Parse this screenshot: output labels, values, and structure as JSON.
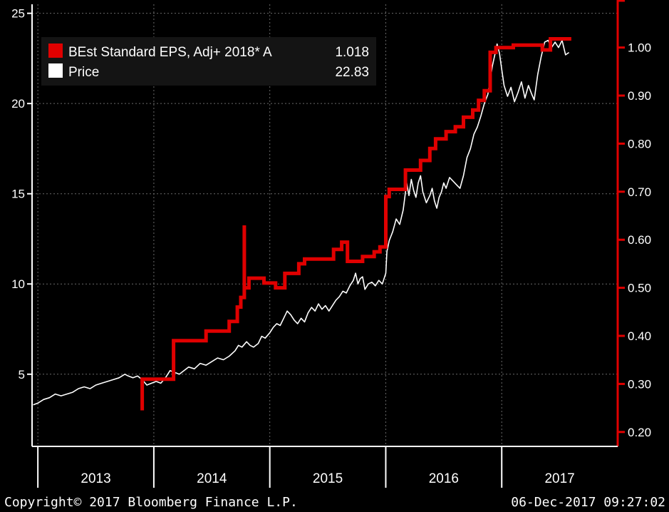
{
  "colors": {
    "background": "#000000",
    "eps": "#e00000",
    "price": "#ffffff",
    "grid": "#6a6a6a",
    "legend_bg": "#141414"
  },
  "chart_data": {
    "type": "line",
    "legend": {
      "placement": "top-left",
      "entries": [
        {
          "key": "eps",
          "label": "BEst Standard EPS, Adj+ 2018* A",
          "last_value": "1.018"
        },
        {
          "key": "price",
          "label": "Price",
          "last_value": "22.83"
        }
      ]
    },
    "left_axis": {
      "ticks": [
        5,
        10,
        15,
        20,
        25
      ],
      "ylim": [
        1.0,
        25.5
      ]
    },
    "right_axis": {
      "ticks": [
        "0.20",
        "0.30",
        "0.40",
        "0.50",
        "0.60",
        "0.70",
        "0.80",
        "0.90",
        "1.00"
      ],
      "ylim": [
        0.17,
        1.09
      ],
      "color": "#e00000"
    },
    "x_axis": {
      "years": [
        "2013",
        "2014",
        "2015",
        "2016",
        "2017"
      ],
      "xlim": [
        2012.95,
        2018.0
      ],
      "grid": true
    },
    "footer": {
      "copyright": "Copyright© 2017 Bloomberg Finance L.P.",
      "timestamp": "06-Dec-2017 09:27:02"
    },
    "series": [
      {
        "name": "BEst Standard EPS, Adj+ 2018* A",
        "axis": "right",
        "step": true,
        "points": [
          [
            2013.9,
            0.245
          ],
          [
            2013.9,
            0.31
          ],
          [
            2014.17,
            0.31
          ],
          [
            2014.17,
            0.39
          ],
          [
            2014.45,
            0.39
          ],
          [
            2014.45,
            0.41
          ],
          [
            2014.65,
            0.41
          ],
          [
            2014.65,
            0.43
          ],
          [
            2014.72,
            0.43
          ],
          [
            2014.72,
            0.46
          ],
          [
            2014.75,
            0.46
          ],
          [
            2014.75,
            0.48
          ],
          [
            2014.78,
            0.48
          ],
          [
            2014.78,
            0.63
          ],
          [
            2014.78,
            0.5
          ],
          [
            2014.82,
            0.5
          ],
          [
            2014.82,
            0.52
          ],
          [
            2014.95,
            0.52
          ],
          [
            2014.95,
            0.51
          ],
          [
            2015.05,
            0.51
          ],
          [
            2015.05,
            0.5
          ],
          [
            2015.13,
            0.5
          ],
          [
            2015.13,
            0.53
          ],
          [
            2015.25,
            0.53
          ],
          [
            2015.25,
            0.55
          ],
          [
            2015.3,
            0.55
          ],
          [
            2015.3,
            0.56
          ],
          [
            2015.55,
            0.56
          ],
          [
            2015.55,
            0.58
          ],
          [
            2015.62,
            0.58
          ],
          [
            2015.62,
            0.595
          ],
          [
            2015.67,
            0.595
          ],
          [
            2015.67,
            0.555
          ],
          [
            2015.8,
            0.555
          ],
          [
            2015.8,
            0.565
          ],
          [
            2015.9,
            0.565
          ],
          [
            2015.9,
            0.575
          ],
          [
            2015.95,
            0.575
          ],
          [
            2015.95,
            0.585
          ],
          [
            2016.0,
            0.585
          ],
          [
            2016.0,
            0.69
          ],
          [
            2016.03,
            0.69
          ],
          [
            2016.03,
            0.705
          ],
          [
            2016.17,
            0.705
          ],
          [
            2016.17,
            0.745
          ],
          [
            2016.3,
            0.745
          ],
          [
            2016.3,
            0.765
          ],
          [
            2016.38,
            0.765
          ],
          [
            2016.38,
            0.79
          ],
          [
            2016.43,
            0.79
          ],
          [
            2016.43,
            0.81
          ],
          [
            2016.52,
            0.81
          ],
          [
            2016.52,
            0.825
          ],
          [
            2016.6,
            0.825
          ],
          [
            2016.6,
            0.835
          ],
          [
            2016.67,
            0.835
          ],
          [
            2016.67,
            0.855
          ],
          [
            2016.75,
            0.855
          ],
          [
            2016.75,
            0.87
          ],
          [
            2016.8,
            0.87
          ],
          [
            2016.8,
            0.89
          ],
          [
            2016.85,
            0.89
          ],
          [
            2016.85,
            0.91
          ],
          [
            2016.9,
            0.91
          ],
          [
            2016.9,
            0.99
          ],
          [
            2016.95,
            0.99
          ],
          [
            2016.95,
            1.0
          ],
          [
            2017.1,
            1.0
          ],
          [
            2017.1,
            1.005
          ],
          [
            2017.35,
            1.005
          ],
          [
            2017.35,
            0.995
          ],
          [
            2017.42,
            0.995
          ],
          [
            2017.42,
            1.018
          ],
          [
            2017.6,
            1.018
          ]
        ]
      },
      {
        "name": "Price",
        "axis": "left",
        "step": false,
        "points": [
          [
            2012.96,
            3.3
          ],
          [
            2013.0,
            3.4
          ],
          [
            2013.05,
            3.6
          ],
          [
            2013.1,
            3.7
          ],
          [
            2013.15,
            3.9
          ],
          [
            2013.2,
            3.8
          ],
          [
            2013.25,
            3.9
          ],
          [
            2013.3,
            4.0
          ],
          [
            2013.35,
            4.2
          ],
          [
            2013.4,
            4.3
          ],
          [
            2013.45,
            4.2
          ],
          [
            2013.5,
            4.4
          ],
          [
            2013.55,
            4.5
          ],
          [
            2013.6,
            4.6
          ],
          [
            2013.65,
            4.7
          ],
          [
            2013.7,
            4.8
          ],
          [
            2013.75,
            5.0
          ],
          [
            2013.78,
            4.9
          ],
          [
            2013.82,
            4.8
          ],
          [
            2013.86,
            4.9
          ],
          [
            2013.9,
            4.7
          ],
          [
            2013.94,
            4.4
          ],
          [
            2013.98,
            4.5
          ],
          [
            2014.02,
            4.6
          ],
          [
            2014.06,
            4.5
          ],
          [
            2014.1,
            4.8
          ],
          [
            2014.14,
            5.2
          ],
          [
            2014.18,
            5.1
          ],
          [
            2014.22,
            5.0
          ],
          [
            2014.26,
            5.2
          ],
          [
            2014.3,
            5.4
          ],
          [
            2014.35,
            5.3
          ],
          [
            2014.4,
            5.6
          ],
          [
            2014.45,
            5.5
          ],
          [
            2014.5,
            5.7
          ],
          [
            2014.55,
            5.9
          ],
          [
            2014.6,
            5.8
          ],
          [
            2014.65,
            6.0
          ],
          [
            2014.7,
            6.3
          ],
          [
            2014.73,
            6.6
          ],
          [
            2014.76,
            6.5
          ],
          [
            2014.8,
            6.8
          ],
          [
            2014.83,
            6.6
          ],
          [
            2014.86,
            6.5
          ],
          [
            2014.9,
            6.7
          ],
          [
            2014.93,
            7.1
          ],
          [
            2014.96,
            7.0
          ],
          [
            2015.0,
            7.3
          ],
          [
            2015.03,
            7.6
          ],
          [
            2015.06,
            7.8
          ],
          [
            2015.09,
            7.7
          ],
          [
            2015.12,
            8.1
          ],
          [
            2015.15,
            8.5
          ],
          [
            2015.18,
            8.3
          ],
          [
            2015.21,
            8.0
          ],
          [
            2015.24,
            7.8
          ],
          [
            2015.27,
            8.1
          ],
          [
            2015.3,
            7.9
          ],
          [
            2015.33,
            8.4
          ],
          [
            2015.36,
            8.7
          ],
          [
            2015.39,
            8.5
          ],
          [
            2015.42,
            8.9
          ],
          [
            2015.45,
            8.6
          ],
          [
            2015.48,
            8.8
          ],
          [
            2015.51,
            8.5
          ],
          [
            2015.54,
            8.8
          ],
          [
            2015.57,
            9.1
          ],
          [
            2015.6,
            9.3
          ],
          [
            2015.63,
            9.6
          ],
          [
            2015.66,
            9.5
          ],
          [
            2015.69,
            9.9
          ],
          [
            2015.72,
            10.2
          ],
          [
            2015.74,
            10.6
          ],
          [
            2015.76,
            10.0
          ],
          [
            2015.78,
            10.3
          ],
          [
            2015.8,
            10.4
          ],
          [
            2015.82,
            9.7
          ],
          [
            2015.85,
            10.0
          ],
          [
            2015.88,
            10.1
          ],
          [
            2015.91,
            9.9
          ],
          [
            2015.94,
            10.2
          ],
          [
            2015.97,
            10.0
          ],
          [
            2016.0,
            10.6
          ],
          [
            2016.01,
            11.8
          ],
          [
            2016.03,
            12.4
          ],
          [
            2016.06,
            12.9
          ],
          [
            2016.09,
            13.6
          ],
          [
            2016.12,
            13.3
          ],
          [
            2016.15,
            14.1
          ],
          [
            2016.18,
            15.6
          ],
          [
            2016.2,
            14.9
          ],
          [
            2016.22,
            15.8
          ],
          [
            2016.24,
            15.2
          ],
          [
            2016.26,
            14.8
          ],
          [
            2016.28,
            15.6
          ],
          [
            2016.3,
            16.0
          ],
          [
            2016.32,
            15.1
          ],
          [
            2016.35,
            14.5
          ],
          [
            2016.38,
            14.9
          ],
          [
            2016.4,
            15.3
          ],
          [
            2016.42,
            14.6
          ],
          [
            2016.44,
            14.2
          ],
          [
            2016.46,
            14.8
          ],
          [
            2016.48,
            15.1
          ],
          [
            2016.5,
            15.6
          ],
          [
            2016.52,
            15.3
          ],
          [
            2016.55,
            15.9
          ],
          [
            2016.58,
            15.7
          ],
          [
            2016.61,
            15.5
          ],
          [
            2016.64,
            15.3
          ],
          [
            2016.67,
            16.0
          ],
          [
            2016.7,
            17.0
          ],
          [
            2016.73,
            17.5
          ],
          [
            2016.76,
            18.3
          ],
          [
            2016.79,
            18.7
          ],
          [
            2016.82,
            19.3
          ],
          [
            2016.85,
            20.0
          ],
          [
            2016.88,
            20.5
          ],
          [
            2016.9,
            21.3
          ],
          [
            2016.92,
            22.1
          ],
          [
            2016.94,
            22.7
          ],
          [
            2016.96,
            23.3
          ],
          [
            2016.98,
            22.8
          ],
          [
            2017.0,
            21.9
          ],
          [
            2017.02,
            21.0
          ],
          [
            2017.05,
            20.4
          ],
          [
            2017.08,
            20.9
          ],
          [
            2017.11,
            20.1
          ],
          [
            2017.14,
            20.6
          ],
          [
            2017.17,
            21.2
          ],
          [
            2017.2,
            20.3
          ],
          [
            2017.23,
            21.0
          ],
          [
            2017.26,
            20.5
          ],
          [
            2017.28,
            20.2
          ],
          [
            2017.31,
            21.6
          ],
          [
            2017.34,
            22.6
          ],
          [
            2017.37,
            23.4
          ],
          [
            2017.4,
            23.5
          ],
          [
            2017.43,
            23.1
          ],
          [
            2017.46,
            23.4
          ],
          [
            2017.49,
            23.1
          ],
          [
            2017.52,
            23.5
          ],
          [
            2017.55,
            22.7
          ],
          [
            2017.58,
            22.83
          ]
        ]
      }
    ]
  }
}
